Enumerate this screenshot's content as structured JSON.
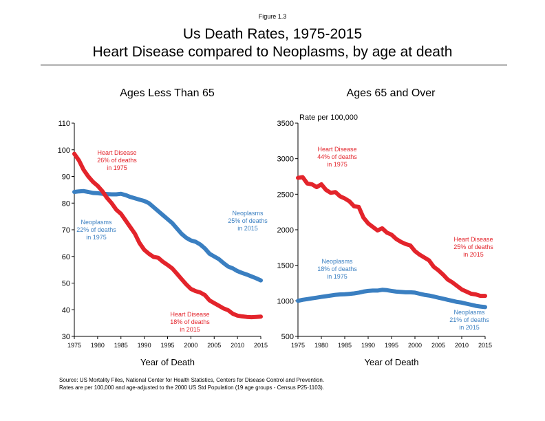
{
  "figure_label": "Figure 1.3",
  "title_line1": "Us Death Rates, 1975-2015",
  "title_line2": "Heart Disease compared to Neoplasms, by age at death",
  "source_line1": "Source: US Mortality Files, National Center for Health Statistics, Centers for Disease Control and Prevention.",
  "source_line2": "Rates are per 100,000 and age-adjusted to the 2000 US Std Population (19 age groups - Census P25-1103).",
  "colors": {
    "heart_disease": "#e3242b",
    "neoplasms": "#3a7fc1"
  },
  "chart_data": [
    {
      "type": "line",
      "title": "Ages Less Than 65",
      "xlabel": "Year of Death",
      "ylabel": "",
      "xlim": [
        1975,
        2015
      ],
      "ylim": [
        30,
        110
      ],
      "x_ticks": [
        1975,
        1980,
        1985,
        1990,
        1995,
        2000,
        2005,
        2010,
        2015
      ],
      "y_ticks": [
        30,
        40,
        50,
        60,
        70,
        80,
        90,
        100,
        110
      ],
      "grid": false,
      "x": [
        1975,
        1976,
        1977,
        1978,
        1979,
        1980,
        1981,
        1982,
        1983,
        1984,
        1985,
        1986,
        1987,
        1988,
        1989,
        1990,
        1991,
        1992,
        1993,
        1994,
        1995,
        1996,
        1997,
        1998,
        1999,
        2000,
        2001,
        2002,
        2003,
        2004,
        2005,
        2006,
        2007,
        2008,
        2009,
        2010,
        2011,
        2012,
        2013,
        2014,
        2015
      ],
      "series": [
        {
          "name": "Heart Disease",
          "color": "#e3242b",
          "values": [
            98.5,
            96,
            92.5,
            90,
            88,
            86.5,
            84.5,
            82,
            80,
            77.5,
            76,
            73.5,
            71,
            68.5,
            65,
            62.5,
            61,
            59.8,
            59.5,
            58,
            56.8,
            55.5,
            53.5,
            51.5,
            49.5,
            47.8,
            47,
            46.5,
            45.5,
            43.5,
            42.5,
            41.5,
            40.5,
            39.8,
            38.5,
            37.8,
            37.5,
            37.3,
            37.2,
            37.3,
            37.4
          ]
        },
        {
          "name": "Neoplasms",
          "color": "#3a7fc1",
          "values": [
            84.2,
            84.4,
            84.5,
            84.2,
            83.8,
            83.7,
            83.5,
            83.4,
            83.3,
            83.3,
            83.5,
            83,
            82.3,
            81.8,
            81.3,
            80.8,
            80,
            78.5,
            77,
            75.5,
            74,
            72.5,
            70.5,
            68.5,
            67,
            66,
            65.5,
            64.5,
            63,
            61,
            60,
            59,
            57.5,
            56.2,
            55.5,
            54.5,
            53.8,
            53.2,
            52.5,
            51.8,
            51
          ]
        }
      ],
      "annotations": [
        {
          "series": "Heart Disease",
          "lines": [
            "Heart Disease",
            "26%  of deaths",
            "in 1975"
          ]
        },
        {
          "series": "Neoplasms",
          "lines": [
            "Neoplasms",
            "22%  of deaths",
            "in 1975"
          ]
        },
        {
          "series": "Neoplasms",
          "lines": [
            "Neoplasms",
            "25%  of deaths",
            "in 2015"
          ]
        },
        {
          "series": "Heart Disease",
          "lines": [
            "Heart Disease",
            "18%  of deaths",
            "in 2015"
          ]
        }
      ]
    },
    {
      "type": "line",
      "title": "Ages 65 and Over",
      "xlabel": "Year of Death",
      "ylabel": "Rate per 100,000",
      "xlim": [
        1975,
        2015
      ],
      "ylim": [
        500,
        3500
      ],
      "x_ticks": [
        1975,
        1980,
        1985,
        1990,
        1995,
        2000,
        2005,
        2010,
        2015
      ],
      "y_ticks": [
        500,
        1000,
        1500,
        2000,
        2500,
        3000,
        3500
      ],
      "grid": false,
      "x": [
        1975,
        1976,
        1977,
        1978,
        1979,
        1980,
        1981,
        1982,
        1983,
        1984,
        1985,
        1986,
        1987,
        1988,
        1989,
        1990,
        1991,
        1992,
        1993,
        1994,
        1995,
        1996,
        1997,
        1998,
        1999,
        2000,
        2001,
        2002,
        2003,
        2004,
        2005,
        2006,
        2007,
        2008,
        2009,
        2010,
        2011,
        2012,
        2013,
        2014,
        2015
      ],
      "series": [
        {
          "name": "Heart Disease",
          "color": "#e3242b",
          "values": [
            2730,
            2740,
            2650,
            2640,
            2600,
            2640,
            2560,
            2520,
            2530,
            2470,
            2440,
            2400,
            2330,
            2320,
            2170,
            2090,
            2040,
            1990,
            2020,
            1960,
            1930,
            1870,
            1830,
            1800,
            1780,
            1700,
            1650,
            1610,
            1570,
            1480,
            1430,
            1370,
            1300,
            1260,
            1210,
            1160,
            1130,
            1100,
            1090,
            1070,
            1070
          ]
        },
        {
          "name": "Neoplasms",
          "color": "#3a7fc1",
          "values": [
            1000,
            1015,
            1025,
            1035,
            1045,
            1055,
            1065,
            1075,
            1085,
            1090,
            1092,
            1098,
            1105,
            1115,
            1130,
            1140,
            1145,
            1145,
            1155,
            1150,
            1140,
            1130,
            1125,
            1120,
            1120,
            1115,
            1100,
            1085,
            1075,
            1060,
            1045,
            1030,
            1015,
            1000,
            985,
            975,
            960,
            945,
            930,
            920,
            912
          ]
        }
      ],
      "annotations": [
        {
          "series": "Heart Disease",
          "lines": [
            "Heart Disease",
            "44%  of deaths",
            "in 1975"
          ]
        },
        {
          "series": "Neoplasms",
          "lines": [
            "Neoplasms",
            "18%  of deaths",
            "in 1975"
          ]
        },
        {
          "series": "Heart Disease",
          "lines": [
            "Heart Disease",
            "25%  of deaths",
            "in 2015"
          ]
        },
        {
          "series": "Neoplasms",
          "lines": [
            "Neoplasms",
            "21%  of deaths",
            "in 2015"
          ]
        }
      ]
    }
  ]
}
